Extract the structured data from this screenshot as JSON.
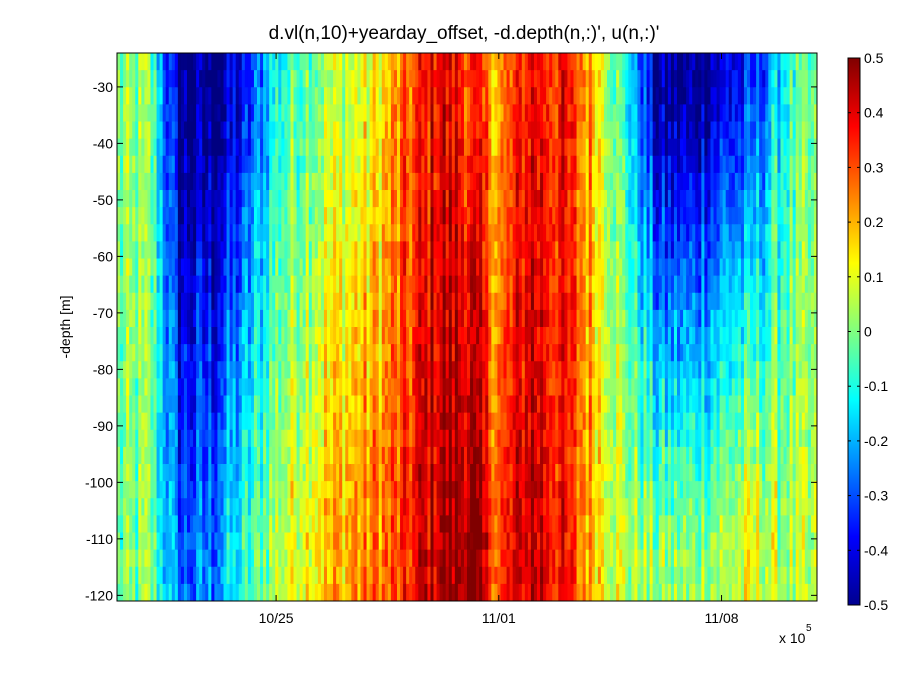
{
  "chart_data": {
    "type": "heatmap",
    "title": "d.vl(n,10)+yearday_offset, -d.depth(n,:)', u(n,:)'",
    "ylabel": "-depth [m]",
    "xlabel": "",
    "x_multiplier": "x 10",
    "x_multiplier_exp": "5",
    "x_ticks": [
      "10/25",
      "11/01",
      "11/08"
    ],
    "y_ticks": [
      "-30",
      "-40",
      "-50",
      "-60",
      "-70",
      "-80",
      "-90",
      "-100",
      "-110",
      "-120"
    ],
    "y_tick_values": [
      -30,
      -40,
      -50,
      -60,
      -70,
      -80,
      -90,
      -100,
      -110,
      -120
    ],
    "ylim": [
      -121,
      -24
    ],
    "xlim_days": [
      "10/20",
      "11/11"
    ],
    "colormap": "jet",
    "clim": [
      -0.5,
      0.5
    ],
    "colorbar_ticks": [
      "0.5",
      "0.4",
      "0.3",
      "0.2",
      "0.1",
      "0",
      "-0.1",
      "-0.2",
      "-0.3",
      "-0.4",
      "-0.5"
    ],
    "colorbar_tick_values": [
      0.5,
      0.4,
      0.3,
      0.2,
      0.1,
      0,
      -0.1,
      -0.2,
      -0.3,
      -0.4,
      -0.5
    ],
    "u_profile_by_day": {
      "day": [
        "10/20",
        "10/21",
        "10/22",
        "10/23",
        "10/24",
        "10/25",
        "10/26",
        "10/27",
        "10/28",
        "10/29",
        "10/30",
        "10/31",
        "11/01",
        "11/02",
        "11/03",
        "11/04",
        "11/05",
        "11/06",
        "11/07",
        "11/08",
        "11/09",
        "11/10",
        "11/11"
      ],
      "u_shallow_30m": [
        0.0,
        0.0,
        -0.5,
        -0.5,
        -0.4,
        -0.1,
        0.0,
        0.05,
        0.1,
        0.25,
        0.4,
        0.35,
        0.2,
        0.4,
        0.35,
        0.2,
        -0.1,
        -0.5,
        -0.5,
        -0.4,
        -0.35,
        -0.1,
        -0.05
      ],
      "u_deep_110m": [
        -0.05,
        0.0,
        -0.3,
        -0.25,
        -0.1,
        0.05,
        0.15,
        0.2,
        0.25,
        0.3,
        0.45,
        0.5,
        0.3,
        0.45,
        0.35,
        0.2,
        0.05,
        0.0,
        0.0,
        0.05,
        0.1,
        0.05,
        0.0
      ]
    }
  }
}
